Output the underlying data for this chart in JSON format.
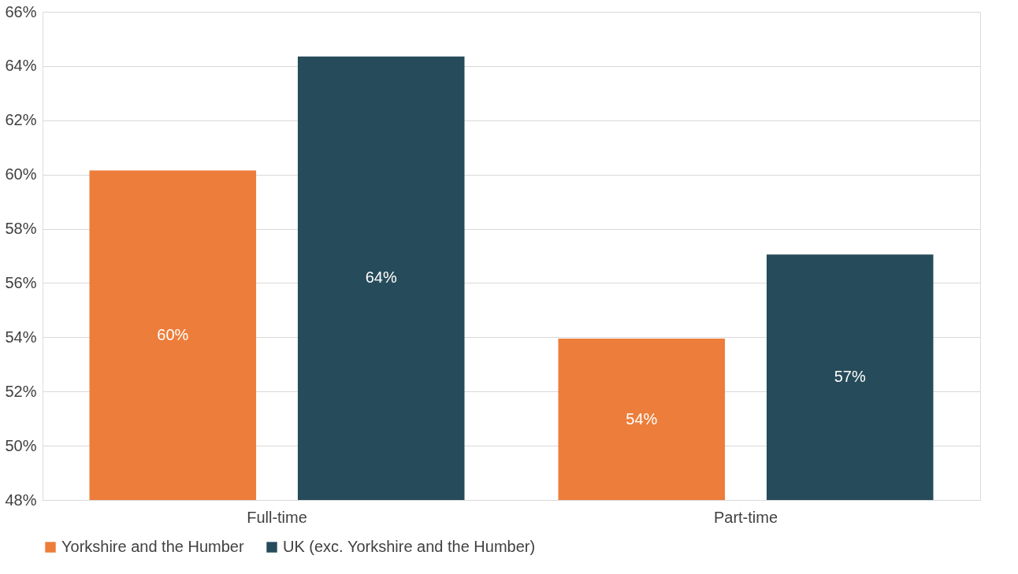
{
  "chart_data": {
    "type": "bar",
    "categories": [
      "Full-time",
      "Part-time"
    ],
    "series": [
      {
        "name": "Yorkshire and the Humber",
        "color": "#ed7d3a",
        "values": [
          60.15,
          53.95
        ],
        "value_labels": [
          "60%",
          "54%"
        ]
      },
      {
        "name": "UK (exc. Yorkshire and the Humber)",
        "color": "#264b5a",
        "values": [
          64.35,
          57.05
        ],
        "value_labels": [
          "64%",
          "57%"
        ]
      }
    ],
    "ylim": [
      48,
      66
    ],
    "yticks": [
      {
        "value": 48,
        "label": "48%"
      },
      {
        "value": 50,
        "label": "50%"
      },
      {
        "value": 52,
        "label": "52%"
      },
      {
        "value": 54,
        "label": "54%"
      },
      {
        "value": 56,
        "label": "56%"
      },
      {
        "value": 58,
        "label": "58%"
      },
      {
        "value": 60,
        "label": "60%"
      },
      {
        "value": 62,
        "label": "62%"
      },
      {
        "value": 64,
        "label": "64%"
      },
      {
        "value": 66,
        "label": "66%"
      }
    ],
    "grid": "y",
    "legend": "bottom"
  }
}
